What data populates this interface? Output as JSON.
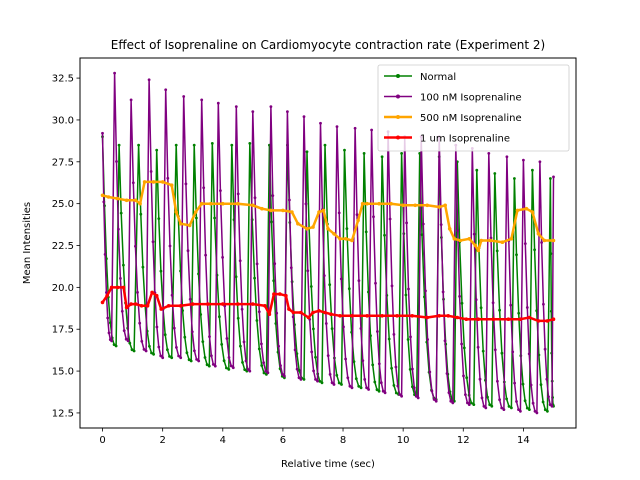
{
  "chart_data": {
    "type": "line",
    "title": "Effect of Isoprenaline on Cardiomyocyte contraction rate (Experiment 2)",
    "xlabel": "Relative time (sec)",
    "ylabel": "Mean Intensities",
    "xlim": [
      -0.75,
      15.75
    ],
    "ylim": [
      11.6,
      33.7
    ],
    "xticks": [
      0,
      2,
      4,
      6,
      8,
      10,
      12,
      14
    ],
    "yticks": [
      12.5,
      15.0,
      17.5,
      20.0,
      22.5,
      25.0,
      27.5,
      30.0,
      32.5
    ],
    "grid": false,
    "legend_position": "top-right",
    "series": [
      {
        "name": "Normal",
        "color": "#008000",
        "marker": "dot",
        "period": 0.62,
        "peaks": [
          [
            0.0,
            29.0
          ],
          [
            0.55,
            28.5
          ],
          [
            1.2,
            28.5
          ],
          [
            1.8,
            28.2
          ],
          [
            2.45,
            28.5
          ],
          [
            3.05,
            28.5
          ],
          [
            3.65,
            28.6
          ],
          [
            4.3,
            28.5
          ],
          [
            4.9,
            28.6
          ],
          [
            5.55,
            28.5
          ],
          [
            6.15,
            28.5
          ],
          [
            6.8,
            28.1
          ],
          [
            7.4,
            28.5
          ],
          [
            8.05,
            28.2
          ],
          [
            8.7,
            28.0
          ],
          [
            9.3,
            27.8
          ],
          [
            9.95,
            28.0
          ],
          [
            10.55,
            28.0
          ],
          [
            11.2,
            27.8
          ],
          [
            11.8,
            27.5
          ],
          [
            12.45,
            27.0
          ],
          [
            13.05,
            26.8
          ],
          [
            13.7,
            26.5
          ],
          [
            14.3,
            27.0
          ],
          [
            14.9,
            26.5
          ]
        ],
        "troughs": [
          [
            0.45,
            16.5
          ],
          [
            1.05,
            16.2
          ],
          [
            1.7,
            16.0
          ],
          [
            2.3,
            15.8
          ],
          [
            2.95,
            15.6
          ],
          [
            3.55,
            15.3
          ],
          [
            4.2,
            15.1
          ],
          [
            4.8,
            15.0
          ],
          [
            5.45,
            14.8
          ],
          [
            6.05,
            14.6
          ],
          [
            6.7,
            14.5
          ],
          [
            7.3,
            14.3
          ],
          [
            7.95,
            14.2
          ],
          [
            8.6,
            14.0
          ],
          [
            9.2,
            13.8
          ],
          [
            9.85,
            13.6
          ],
          [
            10.45,
            13.5
          ],
          [
            11.1,
            13.3
          ],
          [
            11.7,
            13.2
          ],
          [
            12.35,
            13.0
          ],
          [
            12.95,
            12.9
          ],
          [
            13.6,
            12.8
          ],
          [
            14.2,
            12.7
          ],
          [
            14.8,
            12.6
          ],
          [
            15.0,
            12.9
          ]
        ]
      },
      {
        "name": "100 nM Isoprenaline",
        "color": "#800080",
        "marker": "dot",
        "peaks": [
          [
            0.0,
            29.2
          ],
          [
            0.4,
            32.8
          ],
          [
            0.95,
            31.2
          ],
          [
            1.55,
            32.4
          ],
          [
            2.1,
            31.8
          ],
          [
            2.7,
            31.4
          ],
          [
            3.3,
            31.2
          ],
          [
            3.85,
            31.0
          ],
          [
            4.45,
            30.8
          ],
          [
            5.0,
            30.5
          ],
          [
            5.6,
            30.8
          ],
          [
            6.15,
            30.5
          ],
          [
            6.7,
            30.2
          ],
          [
            7.25,
            29.8
          ],
          [
            7.8,
            29.6
          ],
          [
            8.4,
            29.5
          ],
          [
            8.95,
            29.4
          ],
          [
            9.5,
            29.3
          ],
          [
            10.05,
            29.0
          ],
          [
            10.6,
            29.0
          ],
          [
            11.2,
            29.0
          ],
          [
            11.75,
            28.5
          ],
          [
            12.3,
            28.3
          ],
          [
            12.85,
            28.0
          ],
          [
            13.45,
            27.8
          ],
          [
            14.0,
            27.6
          ],
          [
            14.55,
            27.5
          ],
          [
            15.0,
            26.6
          ]
        ],
        "troughs": [
          [
            0.3,
            16.8
          ],
          [
            0.85,
            16.8
          ],
          [
            1.45,
            16.2
          ],
          [
            2.0,
            15.8
          ],
          [
            2.6,
            15.8
          ],
          [
            3.2,
            15.6
          ],
          [
            3.75,
            15.3
          ],
          [
            4.35,
            15.2
          ],
          [
            4.9,
            15.0
          ],
          [
            5.5,
            14.9
          ],
          [
            6.05,
            14.7
          ],
          [
            6.6,
            14.5
          ],
          [
            7.15,
            14.4
          ],
          [
            7.7,
            14.2
          ],
          [
            8.3,
            14.0
          ],
          [
            8.85,
            13.9
          ],
          [
            9.4,
            13.7
          ],
          [
            9.95,
            13.5
          ],
          [
            10.5,
            13.4
          ],
          [
            11.1,
            13.2
          ],
          [
            11.65,
            13.1
          ],
          [
            12.2,
            13.0
          ],
          [
            12.75,
            12.8
          ],
          [
            13.35,
            12.7
          ],
          [
            13.9,
            12.6
          ],
          [
            14.45,
            12.5
          ],
          [
            14.95,
            12.9
          ]
        ]
      },
      {
        "name": "500 nM Isoprenaline",
        "color": "#FFA500",
        "marker": "dot",
        "x": [
          0.0,
          0.2,
          0.5,
          0.8,
          1.1,
          1.25,
          1.4,
          1.7,
          2.0,
          2.3,
          2.45,
          2.6,
          2.9,
          3.1,
          3.3,
          3.6,
          4.0,
          4.5,
          5.0,
          5.3,
          5.6,
          6.0,
          6.3,
          6.5,
          6.8,
          7.0,
          7.2,
          7.35,
          7.5,
          7.7,
          7.9,
          8.1,
          8.3,
          8.5,
          8.65,
          8.8,
          9.2,
          9.6,
          10.0,
          10.4,
          10.8,
          11.2,
          11.4,
          11.55,
          11.7,
          11.9,
          12.2,
          12.4,
          12.5,
          12.6,
          12.9,
          13.3,
          13.6,
          13.8,
          14.1,
          14.3,
          14.5,
          14.7,
          15.0
        ],
        "values": [
          25.5,
          25.4,
          25.3,
          25.2,
          25.2,
          25.0,
          26.3,
          26.3,
          26.3,
          26.1,
          24.5,
          23.8,
          23.7,
          24.5,
          25.0,
          25.0,
          25.0,
          25.0,
          24.9,
          24.7,
          24.6,
          24.6,
          24.5,
          23.8,
          23.5,
          23.6,
          24.5,
          24.6,
          23.5,
          23.2,
          22.9,
          22.9,
          22.8,
          24.0,
          25.0,
          25.0,
          25.0,
          25.0,
          24.9,
          24.9,
          24.9,
          24.8,
          24.9,
          23.5,
          22.9,
          22.8,
          22.9,
          22.5,
          22.2,
          22.8,
          22.8,
          22.7,
          22.9,
          24.6,
          24.7,
          24.5,
          23.2,
          22.8,
          22.8
        ]
      },
      {
        "name": "1 um Isoprenaline",
        "color": "#FF0000",
        "marker": "dot",
        "x": [
          0.0,
          0.15,
          0.3,
          0.5,
          0.7,
          0.8,
          0.95,
          1.1,
          1.3,
          1.5,
          1.65,
          1.8,
          1.95,
          2.2,
          2.6,
          3.0,
          3.5,
          4.0,
          4.5,
          5.0,
          5.4,
          5.55,
          5.7,
          5.9,
          6.1,
          6.2,
          6.35,
          6.6,
          6.85,
          7.0,
          7.2,
          7.4,
          7.6,
          7.9,
          8.3,
          8.8,
          9.3,
          9.8,
          10.3,
          10.8,
          11.2,
          11.5,
          11.8,
          12.1,
          12.5,
          13.0,
          13.5,
          13.9,
          14.2,
          14.5,
          14.8,
          15.0
        ],
        "values": [
          19.1,
          19.5,
          20.0,
          20.0,
          20.0,
          18.8,
          19.0,
          19.0,
          18.9,
          18.9,
          19.7,
          19.5,
          18.7,
          18.9,
          18.9,
          19.0,
          19.0,
          19.0,
          19.0,
          19.0,
          18.9,
          18.4,
          19.6,
          19.6,
          19.5,
          18.7,
          18.5,
          18.5,
          18.2,
          18.5,
          18.6,
          18.5,
          18.4,
          18.3,
          18.3,
          18.3,
          18.3,
          18.3,
          18.3,
          18.2,
          18.3,
          18.3,
          18.2,
          18.1,
          18.1,
          18.1,
          18.1,
          18.1,
          18.2,
          18.0,
          18.0,
          18.1
        ]
      }
    ]
  }
}
